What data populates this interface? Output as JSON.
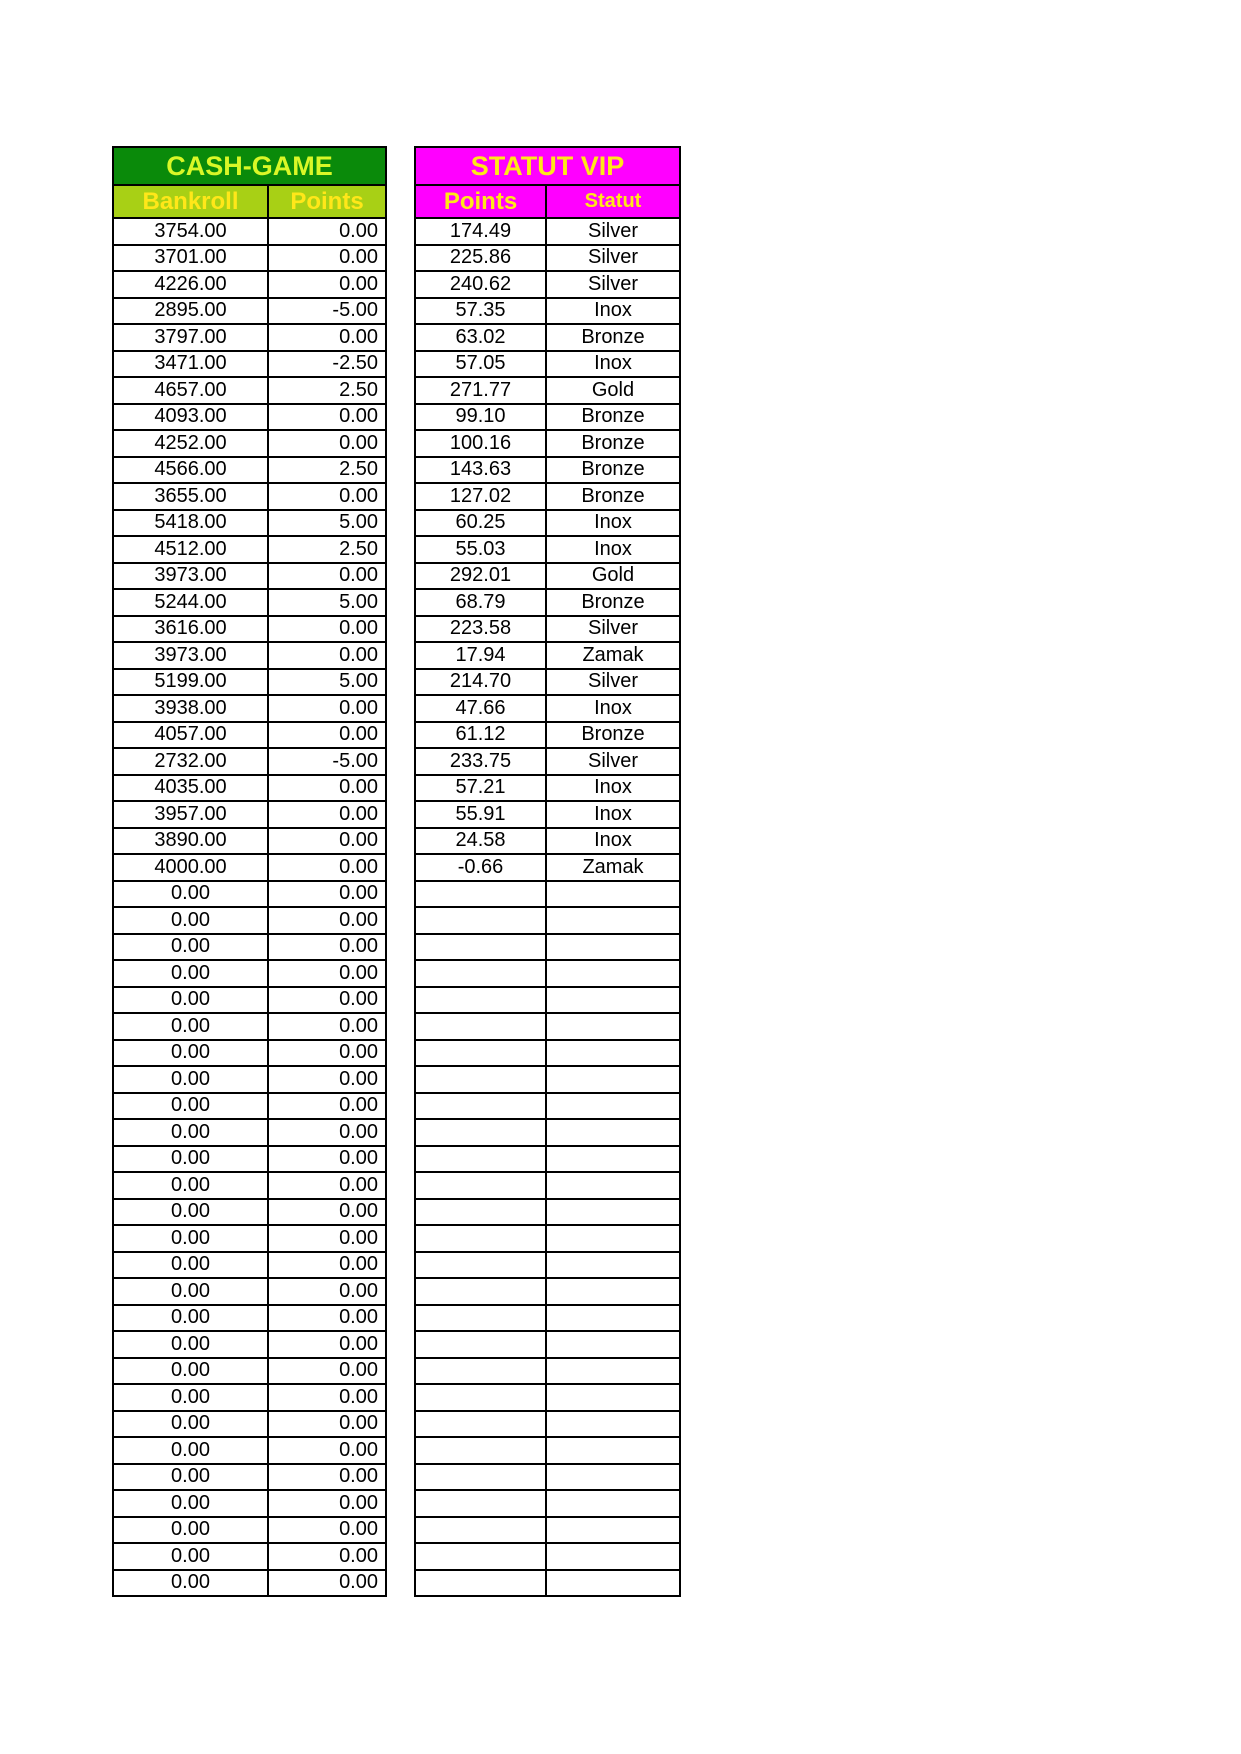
{
  "colors": {
    "green_title_bg": "#0a8a0a",
    "green_title_text": "#d9f727",
    "green_subheader_bg": "#a8d015",
    "subheader_text": "#ffe719",
    "magenta_bg": "#ff00ff",
    "magenta_text": "#ffe719",
    "border": "#000000",
    "cell_text": "#000000",
    "cell_bg": "#ffffff"
  },
  "cash_game_table": {
    "title": "CASH-GAME",
    "columns": [
      "Bankroll",
      "Points"
    ],
    "rows": [
      [
        "3754.00",
        "0.00"
      ],
      [
        "3701.00",
        "0.00"
      ],
      [
        "4226.00",
        "0.00"
      ],
      [
        "2895.00",
        "-5.00"
      ],
      [
        "3797.00",
        "0.00"
      ],
      [
        "3471.00",
        "-2.50"
      ],
      [
        "4657.00",
        "2.50"
      ],
      [
        "4093.00",
        "0.00"
      ],
      [
        "4252.00",
        "0.00"
      ],
      [
        "4566.00",
        "2.50"
      ],
      [
        "3655.00",
        "0.00"
      ],
      [
        "5418.00",
        "5.00"
      ],
      [
        "4512.00",
        "2.50"
      ],
      [
        "3973.00",
        "0.00"
      ],
      [
        "5244.00",
        "5.00"
      ],
      [
        "3616.00",
        "0.00"
      ],
      [
        "3973.00",
        "0.00"
      ],
      [
        "5199.00",
        "5.00"
      ],
      [
        "3938.00",
        "0.00"
      ],
      [
        "4057.00",
        "0.00"
      ],
      [
        "2732.00",
        "-5.00"
      ],
      [
        "4035.00",
        "0.00"
      ],
      [
        "3957.00",
        "0.00"
      ],
      [
        "3890.00",
        "0.00"
      ],
      [
        "4000.00",
        "0.00"
      ],
      [
        "0.00",
        "0.00"
      ],
      [
        "0.00",
        "0.00"
      ],
      [
        "0.00",
        "0.00"
      ],
      [
        "0.00",
        "0.00"
      ],
      [
        "0.00",
        "0.00"
      ],
      [
        "0.00",
        "0.00"
      ],
      [
        "0.00",
        "0.00"
      ],
      [
        "0.00",
        "0.00"
      ],
      [
        "0.00",
        "0.00"
      ],
      [
        "0.00",
        "0.00"
      ],
      [
        "0.00",
        "0.00"
      ],
      [
        "0.00",
        "0.00"
      ],
      [
        "0.00",
        "0.00"
      ],
      [
        "0.00",
        "0.00"
      ],
      [
        "0.00",
        "0.00"
      ],
      [
        "0.00",
        "0.00"
      ],
      [
        "0.00",
        "0.00"
      ],
      [
        "0.00",
        "0.00"
      ],
      [
        "0.00",
        "0.00"
      ],
      [
        "0.00",
        "0.00"
      ],
      [
        "0.00",
        "0.00"
      ],
      [
        "0.00",
        "0.00"
      ],
      [
        "0.00",
        "0.00"
      ],
      [
        "0.00",
        "0.00"
      ],
      [
        "0.00",
        "0.00"
      ],
      [
        "0.00",
        "0.00"
      ],
      [
        "0.00",
        "0.00"
      ]
    ]
  },
  "statut_vip_table": {
    "title": "STATUT VIP",
    "columns": [
      "Points",
      "Statut"
    ],
    "rows": [
      [
        "174.49",
        "Silver"
      ],
      [
        "225.86",
        "Silver"
      ],
      [
        "240.62",
        "Silver"
      ],
      [
        "57.35",
        "Inox"
      ],
      [
        "63.02",
        "Bronze"
      ],
      [
        "57.05",
        "Inox"
      ],
      [
        "271.77",
        "Gold"
      ],
      [
        "99.10",
        "Bronze"
      ],
      [
        "100.16",
        "Bronze"
      ],
      [
        "143.63",
        "Bronze"
      ],
      [
        "127.02",
        "Bronze"
      ],
      [
        "60.25",
        "Inox"
      ],
      [
        "55.03",
        "Inox"
      ],
      [
        "292.01",
        "Gold"
      ],
      [
        "68.79",
        "Bronze"
      ],
      [
        "223.58",
        "Silver"
      ],
      [
        "17.94",
        "Zamak"
      ],
      [
        "214.70",
        "Silver"
      ],
      [
        "47.66",
        "Inox"
      ],
      [
        "61.12",
        "Bronze"
      ],
      [
        "233.75",
        "Silver"
      ],
      [
        "57.21",
        "Inox"
      ],
      [
        "55.91",
        "Inox"
      ],
      [
        "24.58",
        "Inox"
      ],
      [
        "-0.66",
        "Zamak"
      ],
      [
        "",
        ""
      ],
      [
        "",
        ""
      ],
      [
        "",
        ""
      ],
      [
        "",
        ""
      ],
      [
        "",
        ""
      ],
      [
        "",
        ""
      ],
      [
        "",
        ""
      ],
      [
        "",
        ""
      ],
      [
        "",
        ""
      ],
      [
        "",
        ""
      ],
      [
        "",
        ""
      ],
      [
        "",
        ""
      ],
      [
        "",
        ""
      ],
      [
        "",
        ""
      ],
      [
        "",
        ""
      ],
      [
        "",
        ""
      ],
      [
        "",
        ""
      ],
      [
        "",
        ""
      ],
      [
        "",
        ""
      ],
      [
        "",
        ""
      ],
      [
        "",
        ""
      ],
      [
        "",
        ""
      ],
      [
        "",
        ""
      ],
      [
        "",
        ""
      ],
      [
        "",
        ""
      ],
      [
        "",
        ""
      ],
      [
        "",
        ""
      ]
    ]
  }
}
